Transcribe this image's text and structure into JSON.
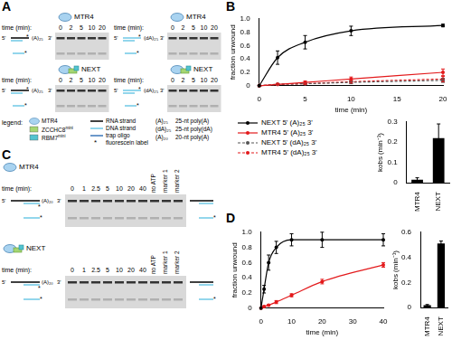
{
  "panels": {
    "A": {
      "label": "A",
      "gels": [
        {
          "title": "MTR4",
          "time_label": "time (min):",
          "times": [
            0,
            2,
            5,
            10,
            20
          ],
          "substrate": "(A)₂₅",
          "color": "#000000"
        },
        {
          "title": "MTR4",
          "time_label": "time (min):",
          "times": [
            0,
            2,
            5,
            10,
            20
          ],
          "substrate": "(dA)₂₅",
          "color": "#6fc8e6"
        },
        {
          "title": "NEXT",
          "time_label": "time (min):",
          "times": [
            0,
            2,
            5,
            10,
            20
          ],
          "substrate": "(A)₂₅",
          "color": "#000000"
        },
        {
          "title": "NEXT",
          "time_label": "time (min):",
          "times": [
            0,
            2,
            5,
            10,
            20
          ],
          "substrate": "(dA)₂₅",
          "color": "#6fc8e6"
        }
      ],
      "legend": {
        "title": "legend:",
        "proteins": [
          {
            "name": "MTR4",
            "color": "#a9d3f0"
          },
          {
            "name": "ZCCHC8",
            "sup": "mini",
            "color": "#a6d672"
          },
          {
            "name": "RBM7",
            "sup": "mini",
            "color": "#52c3cf"
          }
        ],
        "strands": [
          {
            "name": "RNA strand",
            "color": "#000000"
          },
          {
            "name": "DNA strand",
            "color": "#6fc8e6"
          },
          {
            "name": "trap oligo",
            "color": "#3b77b8"
          }
        ],
        "label": {
          "symbol": "*",
          "name": "fluorescein label"
        },
        "substrates": [
          {
            "symbol": "(A)₂₅",
            "name": "25-nt poly(A)"
          },
          {
            "symbol": "(dA)₂₅",
            "name": "25-nt poly(dA)"
          },
          {
            "symbol": "(A)₂₀",
            "name": "20-nt poly(A)"
          }
        ]
      }
    },
    "B": {
      "label": "B"
    },
    "C": {
      "label": "C",
      "gels": [
        {
          "title": "MTR4",
          "time_label": "time (min):",
          "times": [
            0,
            1,
            2.5,
            5,
            10,
            20,
            40
          ],
          "extra_lanes": [
            "no ATP",
            "marker 1",
            "marker 2"
          ],
          "substrate": "(A)₂₀",
          "color": "#000000"
        },
        {
          "title": "NEXT",
          "time_label": "time (min):",
          "times": [
            0,
            1,
            2.5,
            5,
            10,
            20,
            40
          ],
          "extra_lanes": [
            "no ATP",
            "marker 1",
            "marker 2"
          ],
          "substrate": "(A)₂₀",
          "color": "#000000"
        }
      ]
    },
    "D": {
      "label": "D"
    },
    "ends": {
      "five": "5'",
      "three": "3'"
    }
  },
  "chart_data": [
    {
      "type": "line",
      "x_label": "time (min)",
      "y_label": "fraction unwound",
      "x": [
        0,
        2,
        5,
        10,
        20
      ],
      "xlim": [
        0,
        20
      ],
      "xticks": [
        0,
        5,
        10,
        15,
        20
      ],
      "ylim": [
        0,
        1
      ],
      "yticks": [
        0,
        0.2,
        0.4,
        0.6,
        0.8,
        {
          "value": 1,
          "label": "1.0"
        }
      ],
      "grid": false,
      "legend": "bottom",
      "series": [
        {
          "name": "NEXT 5' (A)₂₅ 3'",
          "color": "#000000",
          "line_style": "solid",
          "marker": "circle",
          "values": [
            0,
            0.42,
            0.65,
            0.82,
            0.9
          ],
          "errors": [
            0,
            0.1,
            0.1,
            0.07,
            0.02
          ]
        },
        {
          "name": "MTR4 5' (A)₂₅ 3'",
          "color": "#e31a1c",
          "line_style": "solid",
          "marker": "circle",
          "values": [
            0,
            0.02,
            0.05,
            0.1,
            0.2
          ],
          "errors": [
            0,
            0.01,
            0.02,
            0.03,
            0.05
          ]
        },
        {
          "name": "NEXT 5' (dA)₂₅ 3'",
          "color": "#555555",
          "line_style": "dashed",
          "marker": "circle",
          "values": [
            0,
            0.02,
            0.03,
            0.05,
            0.08
          ],
          "errors": [
            0,
            0.01,
            0.01,
            0.02,
            0.03
          ]
        },
        {
          "name": "MTR4 5' (dA)₂₅ 3'",
          "color": "#e31a1c",
          "line_style": "dashed",
          "marker": "circle",
          "values": [
            0,
            0.02,
            0.03,
            0.06,
            0.1
          ],
          "errors": [
            0,
            0.01,
            0.01,
            0.02,
            0.04
          ]
        }
      ]
    },
    {
      "type": "bar",
      "categories": [
        "MTR4",
        "NEXT"
      ],
      "values": [
        0.015,
        0.22
      ],
      "errors": [
        0.01,
        0.07
      ],
      "color": "#000000",
      "y_label": "kobs (min⁻¹)",
      "ylim": [
        0,
        0.3
      ],
      "yticks": [
        0,
        0.1,
        0.2,
        0.3
      ],
      "grid": false
    },
    {
      "type": "line",
      "x_label": "time (min)",
      "y_label": "fraction unwound",
      "x": [
        0,
        1,
        2.5,
        5,
        10,
        20,
        40
      ],
      "xlim": [
        0,
        40
      ],
      "xticks": [
        0,
        10,
        20,
        30,
        40
      ],
      "ylim": [
        0,
        1
      ],
      "yticks": [
        0,
        0.2,
        0.4,
        0.6,
        0.8,
        {
          "value": 1,
          "label": "1.0"
        }
      ],
      "grid": false,
      "series": [
        {
          "color": "#000000",
          "line_style": "solid",
          "marker": "circle",
          "values": [
            0,
            0.25,
            0.6,
            0.8,
            0.9,
            0.9,
            0.9
          ],
          "errors": [
            0,
            0.05,
            0.1,
            0.08,
            0.08,
            0.1,
            0.08
          ]
        },
        {
          "color": "#e31a1c",
          "line_style": "solid",
          "marker": "circle",
          "values": [
            0,
            0.02,
            0.04,
            0.08,
            0.17,
            0.35,
            0.57
          ],
          "errors": [
            0,
            0.01,
            0.01,
            0.02,
            0.02,
            0.03,
            0.03
          ]
        }
      ]
    },
    {
      "type": "bar",
      "categories": [
        "MTR4",
        "NEXT"
      ],
      "values": [
        0.02,
        0.51
      ],
      "errors": [
        0.005,
        0.02
      ],
      "color": "#000000",
      "y_label": "kobs (min⁻¹)",
      "ylim": [
        0,
        0.6
      ],
      "yticks": [
        0,
        0.2,
        0.4,
        0.6
      ],
      "grid": false
    }
  ]
}
